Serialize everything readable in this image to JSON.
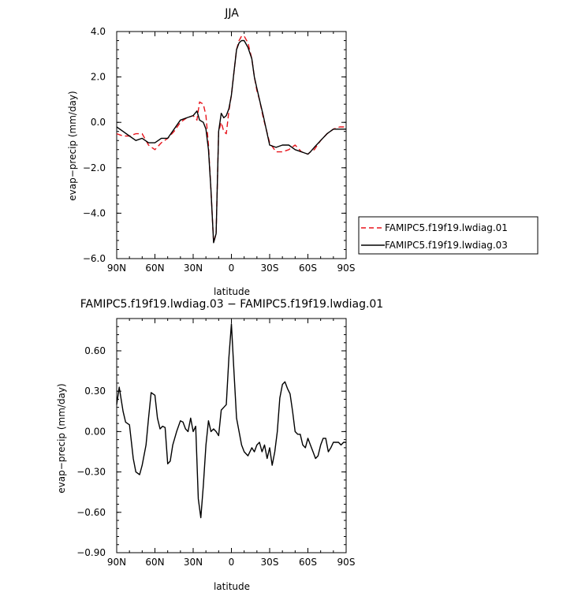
{
  "chart_data": [
    {
      "type": "line",
      "title": "JJA",
      "xlabel": "latitude",
      "ylabel": "evap−precip (mm/day)",
      "x_tick_values": [
        90,
        60,
        30,
        0,
        -30,
        -60,
        -90
      ],
      "x_tick_labels": [
        "90N",
        "60N",
        "30N",
        "0",
        "30S",
        "60S",
        "90S"
      ],
      "y_tick_values": [
        4,
        2,
        0,
        -2,
        -4,
        -6
      ],
      "y_tick_labels": [
        "4.0",
        "2.0",
        "0.0",
        "−2.0",
        "−4.0",
        "−6.0"
      ],
      "xlim": [
        90,
        -90
      ],
      "ylim": [
        -6,
        4
      ],
      "legend_position": "right",
      "series": [
        {
          "name": "FAMIPC5.f19f19.lwdiag.01",
          "color": "#e8141c",
          "dash": "dashed",
          "x": [
            90,
            85,
            80,
            75,
            70,
            65,
            60,
            55,
            50,
            45,
            40,
            35,
            30,
            27,
            25,
            22,
            20,
            18,
            16,
            14,
            12,
            10,
            8,
            6,
            4,
            2,
            0,
            -2,
            -4,
            -6,
            -8,
            -10,
            -13,
            -16,
            -18,
            -20,
            -22,
            -25,
            -30,
            -35,
            -40,
            -45,
            -50,
            -55,
            -60,
            -62,
            -65,
            -70,
            -75,
            -80,
            -85,
            -90
          ],
          "y": [
            -0.5,
            -0.6,
            -0.6,
            -0.5,
            -0.5,
            -1.0,
            -1.2,
            -0.9,
            -0.7,
            -0.4,
            0.0,
            0.2,
            0.3,
            0.1,
            0.9,
            0.8,
            0.3,
            -1.0,
            -3.0,
            -5.3,
            -4.9,
            -0.4,
            0.0,
            -0.4,
            -0.5,
            0.5,
            1.2,
            2.2,
            3.2,
            3.6,
            3.8,
            3.8,
            3.5,
            2.8,
            2.0,
            1.4,
            1.0,
            0.2,
            -0.9,
            -1.3,
            -1.3,
            -1.2,
            -1.0,
            -1.3,
            -1.4,
            -1.3,
            -1.2,
            -0.8,
            -0.5,
            -0.3,
            -0.2,
            -0.2
          ]
        },
        {
          "name": "FAMIPC5.f19f19.lwdiag.03",
          "color": "#000000",
          "dash": "solid",
          "x": [
            90,
            85,
            80,
            75,
            70,
            65,
            60,
            55,
            50,
            45,
            40,
            35,
            30,
            27,
            25,
            22,
            20,
            18,
            16,
            14,
            12,
            10,
            8,
            6,
            4,
            2,
            0,
            -2,
            -4,
            -6,
            -8,
            -10,
            -13,
            -16,
            -18,
            -20,
            -22,
            -25,
            -30,
            -35,
            -40,
            -45,
            -50,
            -55,
            -60,
            -62,
            -65,
            -70,
            -75,
            -80,
            -85,
            -90
          ],
          "y": [
            -0.2,
            -0.4,
            -0.6,
            -0.8,
            -0.7,
            -0.9,
            -0.9,
            -0.7,
            -0.7,
            -0.3,
            0.1,
            0.2,
            0.3,
            0.5,
            0.1,
            0.0,
            -0.3,
            -1.2,
            -3.0,
            -5.3,
            -4.9,
            -0.4,
            0.4,
            0.2,
            0.3,
            0.6,
            1.2,
            2.2,
            3.2,
            3.5,
            3.6,
            3.6,
            3.3,
            2.8,
            2.0,
            1.5,
            1.0,
            0.3,
            -1.0,
            -1.1,
            -1.0,
            -1.0,
            -1.2,
            -1.3,
            -1.4,
            -1.3,
            -1.1,
            -0.8,
            -0.5,
            -0.3,
            -0.3,
            -0.3
          ]
        }
      ]
    },
    {
      "type": "line",
      "title": "FAMIPC5.f19f19.lwdiag.03 − FAMIPC5.f19f19.lwdiag.01",
      "xlabel": "latitude",
      "ylabel": "evap−precip (mm/day)",
      "x_tick_values": [
        90,
        60,
        30,
        0,
        -30,
        -60,
        -90
      ],
      "x_tick_labels": [
        "90N",
        "60N",
        "30N",
        "0",
        "30S",
        "60S",
        "90S"
      ],
      "y_tick_values": [
        0.6,
        0.3,
        0.0,
        -0.3,
        -0.6,
        -0.9
      ],
      "y_tick_labels": [
        "0.60",
        "0.30",
        "0.00",
        "−0.30",
        "−0.60",
        "−0.90"
      ],
      "xlim": [
        90,
        -90
      ],
      "ylim": [
        -0.9,
        0.84
      ],
      "series": [
        {
          "color": "#000000",
          "dash": "solid",
          "x": [
            90,
            88,
            85,
            83,
            80,
            77,
            75,
            72,
            70,
            67,
            65,
            63,
            60,
            58,
            56,
            54,
            52,
            50,
            48,
            46,
            43,
            40,
            38,
            36,
            34,
            32,
            30,
            28,
            26,
            24,
            22,
            20,
            18,
            16,
            14,
            12,
            10,
            8,
            6,
            4,
            2,
            0,
            -2,
            -4,
            -6,
            -8,
            -10,
            -13,
            -16,
            -18,
            -20,
            -22,
            -24,
            -26,
            -28,
            -30,
            -32,
            -34,
            -36,
            -38,
            -40,
            -42,
            -44,
            -46,
            -48,
            -50,
            -52,
            -54,
            -56,
            -58,
            -60,
            -62,
            -64,
            -66,
            -68,
            -70,
            -72,
            -74,
            -76,
            -78,
            -80,
            -82,
            -84,
            -86,
            -88,
            -90
          ],
          "y": [
            0.2,
            0.33,
            0.15,
            0.07,
            0.05,
            -0.2,
            -0.3,
            -0.32,
            -0.25,
            -0.1,
            0.1,
            0.29,
            0.27,
            0.1,
            0.02,
            0.04,
            0.03,
            -0.24,
            -0.22,
            -0.1,
            0.0,
            0.08,
            0.07,
            0.02,
            0.0,
            0.1,
            0.0,
            0.04,
            -0.5,
            -0.64,
            -0.4,
            -0.1,
            0.08,
            0.0,
            0.02,
            0.0,
            -0.03,
            0.16,
            0.18,
            0.2,
            0.55,
            0.8,
            0.45,
            0.1,
            0.0,
            -0.1,
            -0.15,
            -0.18,
            -0.12,
            -0.15,
            -0.1,
            -0.08,
            -0.15,
            -0.1,
            -0.2,
            -0.12,
            -0.25,
            -0.15,
            0.0,
            0.25,
            0.35,
            0.37,
            0.32,
            0.28,
            0.15,
            0.0,
            -0.02,
            -0.02,
            -0.1,
            -0.12,
            -0.05,
            -0.1,
            -0.15,
            -0.2,
            -0.18,
            -0.1,
            -0.05,
            -0.05,
            -0.15,
            -0.12,
            -0.08,
            -0.08,
            -0.08,
            -0.1,
            -0.08,
            -0.08
          ]
        }
      ]
    }
  ]
}
